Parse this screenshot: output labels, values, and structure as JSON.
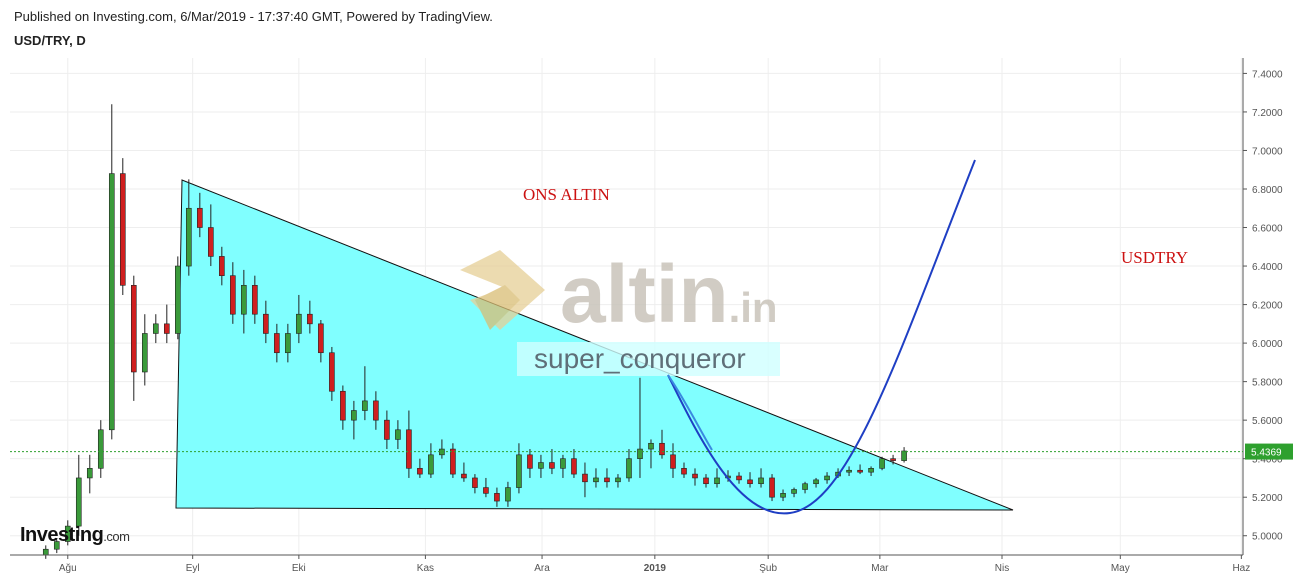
{
  "header": {
    "published": "Published on Investing.com, 6/Mar/2019 - 17:37:40 GMT, Powered by TradingView.",
    "symbol": "USD/TRY, D"
  },
  "chart_data": {
    "type": "candlestick",
    "x": [
      -4,
      -2,
      0,
      2,
      4,
      6,
      8,
      10,
      12,
      14,
      16,
      18,
      20,
      22,
      24,
      26,
      28,
      30,
      32,
      34,
      36,
      38,
      40,
      42,
      44,
      46,
      48,
      50,
      52,
      54,
      56,
      58,
      60,
      62,
      64,
      66,
      68,
      70,
      72,
      74,
      76,
      78,
      80,
      82,
      84,
      86,
      88,
      90,
      92,
      94,
      96,
      98,
      100,
      102,
      104,
      106,
      108,
      110,
      112,
      114,
      116,
      118,
      120,
      122,
      124,
      126,
      128,
      130,
      132,
      134,
      136,
      138,
      140,
      142,
      144,
      146,
      148,
      150,
      152
    ],
    "open": [
      4.9,
      4.93,
      4.97,
      5.05,
      5.3,
      5.35,
      5.55,
      6.88,
      6.3,
      5.85,
      6.05,
      6.1,
      6.05,
      6.4,
      6.7,
      6.6,
      6.45,
      6.35,
      6.15,
      6.3,
      6.15,
      6.05,
      5.95,
      6.05,
      6.15,
      6.1,
      5.95,
      5.75,
      5.6,
      5.65,
      5.7,
      5.6,
      5.5,
      5.55,
      5.35,
      5.32,
      5.42,
      5.45,
      5.32,
      5.3,
      5.25,
      5.22,
      5.18,
      5.25,
      5.42,
      5.35,
      5.38,
      5.35,
      5.4,
      5.32,
      5.28,
      5.3,
      5.28,
      5.3,
      5.4,
      5.45,
      5.48,
      5.42,
      5.35,
      5.32,
      5.3,
      5.27,
      5.3,
      5.31,
      5.29,
      5.27,
      5.3,
      5.2,
      5.22,
      5.24,
      5.27,
      5.29,
      5.31,
      5.33,
      5.34,
      5.33,
      5.35,
      5.4,
      5.39
    ],
    "high": [
      4.95,
      4.98,
      5.08,
      5.42,
      5.42,
      5.6,
      7.24,
      6.96,
      6.35,
      6.15,
      6.15,
      6.2,
      6.45,
      6.85,
      6.78,
      6.72,
      6.5,
      6.42,
      6.38,
      6.35,
      6.22,
      6.1,
      6.1,
      6.25,
      6.22,
      6.12,
      5.98,
      5.78,
      5.7,
      5.88,
      5.75,
      5.65,
      5.6,
      5.65,
      5.4,
      5.48,
      5.5,
      5.48,
      5.38,
      5.32,
      5.3,
      5.25,
      5.28,
      5.48,
      5.45,
      5.42,
      5.45,
      5.42,
      5.45,
      5.38,
      5.35,
      5.35,
      5.32,
      5.45,
      5.82,
      5.5,
      5.55,
      5.48,
      5.38,
      5.35,
      5.32,
      5.35,
      5.34,
      5.33,
      5.33,
      5.35,
      5.32,
      5.24,
      5.25,
      5.28,
      5.3,
      5.33,
      5.35,
      5.36,
      5.37,
      5.36,
      5.41,
      5.42,
      5.46
    ],
    "low": [
      4.88,
      4.91,
      4.95,
      5.0,
      5.22,
      5.3,
      5.5,
      6.25,
      5.7,
      5.78,
      6.0,
      6.0,
      6.02,
      6.35,
      6.55,
      6.4,
      6.3,
      6.1,
      6.05,
      6.1,
      6.0,
      5.9,
      5.9,
      6.0,
      6.05,
      5.9,
      5.7,
      5.55,
      5.5,
      5.6,
      5.55,
      5.45,
      5.45,
      5.3,
      5.3,
      5.3,
      5.4,
      5.3,
      5.28,
      5.22,
      5.2,
      5.15,
      5.15,
      5.22,
      5.3,
      5.3,
      5.32,
      5.3,
      5.3,
      5.2,
      5.25,
      5.25,
      5.25,
      5.28,
      5.3,
      5.35,
      5.4,
      5.3,
      5.3,
      5.26,
      5.25,
      5.25,
      5.28,
      5.27,
      5.25,
      5.25,
      5.18,
      5.18,
      5.2,
      5.22,
      5.25,
      5.27,
      5.3,
      5.31,
      5.32,
      5.31,
      5.34,
      5.37,
      5.38
    ],
    "close": [
      4.93,
      4.97,
      5.05,
      5.3,
      5.35,
      5.55,
      6.88,
      6.3,
      5.85,
      6.05,
      6.1,
      6.05,
      6.4,
      6.7,
      6.6,
      6.45,
      6.35,
      6.15,
      6.3,
      6.15,
      6.05,
      5.95,
      6.05,
      6.15,
      6.1,
      5.95,
      5.75,
      5.6,
      5.65,
      5.7,
      5.6,
      5.5,
      5.55,
      5.35,
      5.32,
      5.42,
      5.45,
      5.32,
      5.3,
      5.25,
      5.22,
      5.18,
      5.25,
      5.42,
      5.35,
      5.38,
      5.35,
      5.4,
      5.32,
      5.28,
      5.3,
      5.28,
      5.3,
      5.4,
      5.45,
      5.48,
      5.42,
      5.35,
      5.32,
      5.3,
      5.27,
      5.3,
      5.31,
      5.29,
      5.27,
      5.3,
      5.2,
      5.22,
      5.24,
      5.27,
      5.29,
      5.31,
      5.33,
      5.34,
      5.33,
      5.35,
      5.4,
      5.39,
      5.44
    ],
    "up_color": "#3a9a3a",
    "down_color": "#cf1f1f",
    "xlim": [
      -10.5,
      213.6
    ],
    "ylim": [
      4.9,
      7.48
    ],
    "xticks": [
      {
        "value": 0,
        "label": "Ağu"
      },
      {
        "value": 22.7,
        "label": "Eyl"
      },
      {
        "value": 42,
        "label": "Eki"
      },
      {
        "value": 65,
        "label": "Kas"
      },
      {
        "value": 86.2,
        "label": "Ara"
      },
      {
        "value": 106.7,
        "label": "2019"
      },
      {
        "value": 127.3,
        "label": "Şub"
      },
      {
        "value": 147.6,
        "label": "Mar"
      },
      {
        "value": 169.8,
        "label": "Nis"
      },
      {
        "value": 191.3,
        "label": "May"
      },
      {
        "value": 213.3,
        "label": "Haz"
      }
    ],
    "yticks": [
      {
        "value": 5.0,
        "label": "5.0000"
      },
      {
        "value": 5.2,
        "label": "5.2000"
      },
      {
        "value": 5.4,
        "label": "5.4000"
      },
      {
        "value": 5.6,
        "label": "5.6000"
      },
      {
        "value": 5.8,
        "label": "5.8000"
      },
      {
        "value": 6.0,
        "label": "6.0000"
      },
      {
        "value": 6.2,
        "label": "6.2000"
      },
      {
        "value": 6.4,
        "label": "6.4000"
      },
      {
        "value": 6.6,
        "label": "6.6000"
      },
      {
        "value": 6.8,
        "label": "6.8000"
      },
      {
        "value": 7.0,
        "label": "7.0000"
      },
      {
        "value": 7.2,
        "label": "7.2000"
      },
      {
        "value": 7.4,
        "label": "7.4000"
      }
    ],
    "last_price": 5.4369,
    "last_price_color": "#2ea02e",
    "grid": true,
    "annotations": [
      "ONS ALTIN",
      "USDTRY"
    ]
  },
  "watermark": {
    "logo": "altin",
    "logo_suffix": ".in",
    "author": "super_conqueror"
  },
  "footer_logo": {
    "name": "Investing",
    "suffix": ".com"
  }
}
